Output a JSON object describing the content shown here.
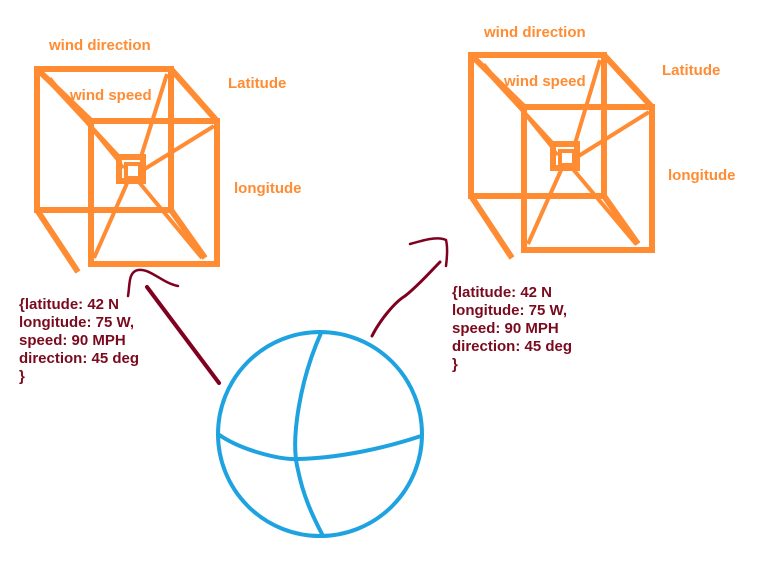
{
  "colors": {
    "cube": "#FF8C33",
    "globe": "#1EA3E0",
    "connector": "#800020",
    "data_text": "#7A0A1E"
  },
  "left_cube": {
    "labels": {
      "wind_direction": "wind direction",
      "wind_speed": "wind speed",
      "latitude": "Latitude",
      "longitude": "longitude"
    },
    "data": {
      "open": "{latitude: 42 N",
      "longitude": "longitude: 75 W,",
      "speed": "speed: 90 MPH",
      "direction": "direction: 45 deg",
      "close": "}"
    }
  },
  "right_cube": {
    "labels": {
      "wind_direction": "wind direction",
      "wind_speed": "wind speed",
      "latitude": "Latitude",
      "longitude": "longitude"
    },
    "data": {
      "open": "{latitude: 42 N",
      "longitude": "longitude: 75 W,",
      "speed": "speed: 90 MPH",
      "direction": "direction: 45 deg",
      "close": "}"
    }
  },
  "globe": {
    "icon": "globe-icon"
  }
}
